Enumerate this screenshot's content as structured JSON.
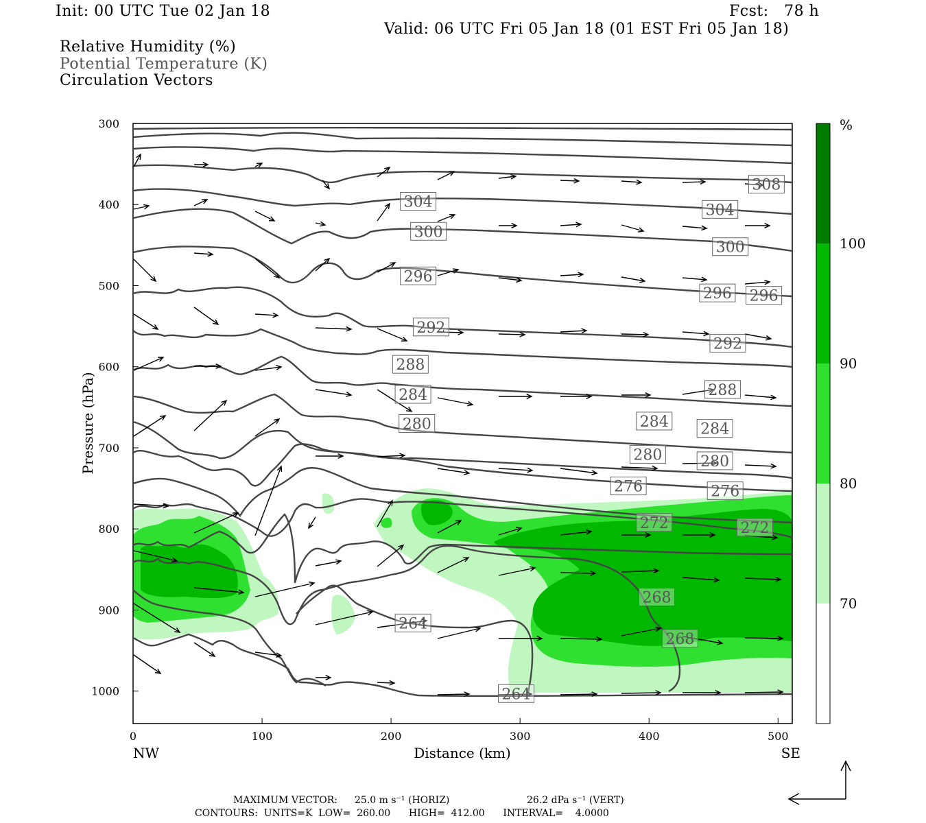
{
  "header": {
    "init": "Init: 00 UTC Tue 02 Jan 18",
    "fcst": "Fcst:   78 h",
    "valid": "Valid: 06 UTC Fri 05 Jan 18 (01 EST Fri 05 Jan 18)",
    "legend": [
      "Relative Humidity (%)",
      "Potential Temperature (K)",
      "Circulation Vectors"
    ]
  },
  "colorbar": {
    "unit": "%",
    "levels": [
      "70",
      "80",
      "90",
      "100"
    ],
    "colors": [
      "#ffffff",
      "#c0f7c0",
      "#30e030",
      "#00b800",
      "#007d00"
    ]
  },
  "footer": {
    "max_vector_label": "MAXIMUM VECTOR:",
    "max_vector_horiz": "25.0 m s⁻¹ (HORIZ)",
    "max_vector_vert": "26.2 dPa s⁻¹ (VERT)",
    "contours": "CONTOURS:  UNITS=K  LOW=  260.00      HIGH=  412.00      INTERVAL=    4.0000"
  },
  "chart_data": {
    "type": "cross-section",
    "xlabel": "Distance (km)",
    "ylabel": "Pressure (hPa)",
    "xlim": [
      0,
      511
    ],
    "ylim": [
      1040,
      300
    ],
    "x_ticks": [
      "0",
      "100",
      "200",
      "300",
      "400",
      "500"
    ],
    "y_ticks": [
      "300",
      "400",
      "500",
      "600",
      "700",
      "800",
      "900",
      "1000"
    ],
    "x_end_labels": {
      "left": "NW",
      "right": "SE"
    },
    "theta_contour_labels": [
      {
        "label": "308",
        "x": 491,
        "p": 375
      },
      {
        "label": "304",
        "x": 221,
        "p": 396
      },
      {
        "label": "304",
        "x": 455,
        "p": 406
      },
      {
        "label": "300",
        "x": 229,
        "p": 433
      },
      {
        "label": "300",
        "x": 463,
        "p": 452
      },
      {
        "label": "296",
        "x": 221,
        "p": 488
      },
      {
        "label": "296",
        "x": 453,
        "p": 509
      },
      {
        "label": "296",
        "x": 489,
        "p": 512
      },
      {
        "label": "292",
        "x": 231,
        "p": 551
      },
      {
        "label": "292",
        "x": 461,
        "p": 571
      },
      {
        "label": "288",
        "x": 215,
        "p": 597
      },
      {
        "label": "288",
        "x": 457,
        "p": 628
      },
      {
        "label": "284",
        "x": 217,
        "p": 634
      },
      {
        "label": "284",
        "x": 404,
        "p": 667
      },
      {
        "label": "284",
        "x": 451,
        "p": 676
      },
      {
        "label": "280",
        "x": 220,
        "p": 670
      },
      {
        "label": "280",
        "x": 399,
        "p": 708
      },
      {
        "label": "280",
        "x": 451,
        "p": 716
      },
      {
        "label": "276",
        "x": 384,
        "p": 747
      },
      {
        "label": "276",
        "x": 459,
        "p": 753
      },
      {
        "label": "272",
        "x": 404,
        "p": 792
      },
      {
        "label": "272",
        "x": 482,
        "p": 798
      },
      {
        "label": "268",
        "x": 406,
        "p": 884
      },
      {
        "label": "268",
        "x": 424,
        "p": 935
      },
      {
        "label": "264",
        "x": 217,
        "p": 916
      },
      {
        "label": "264",
        "x": 297,
        "p": 1003
      }
    ],
    "rh_shading": "70-100 %, green levels; moist layer 760-1000 hPa east of 240 km and 780-930 hPa west of 90 km"
  }
}
